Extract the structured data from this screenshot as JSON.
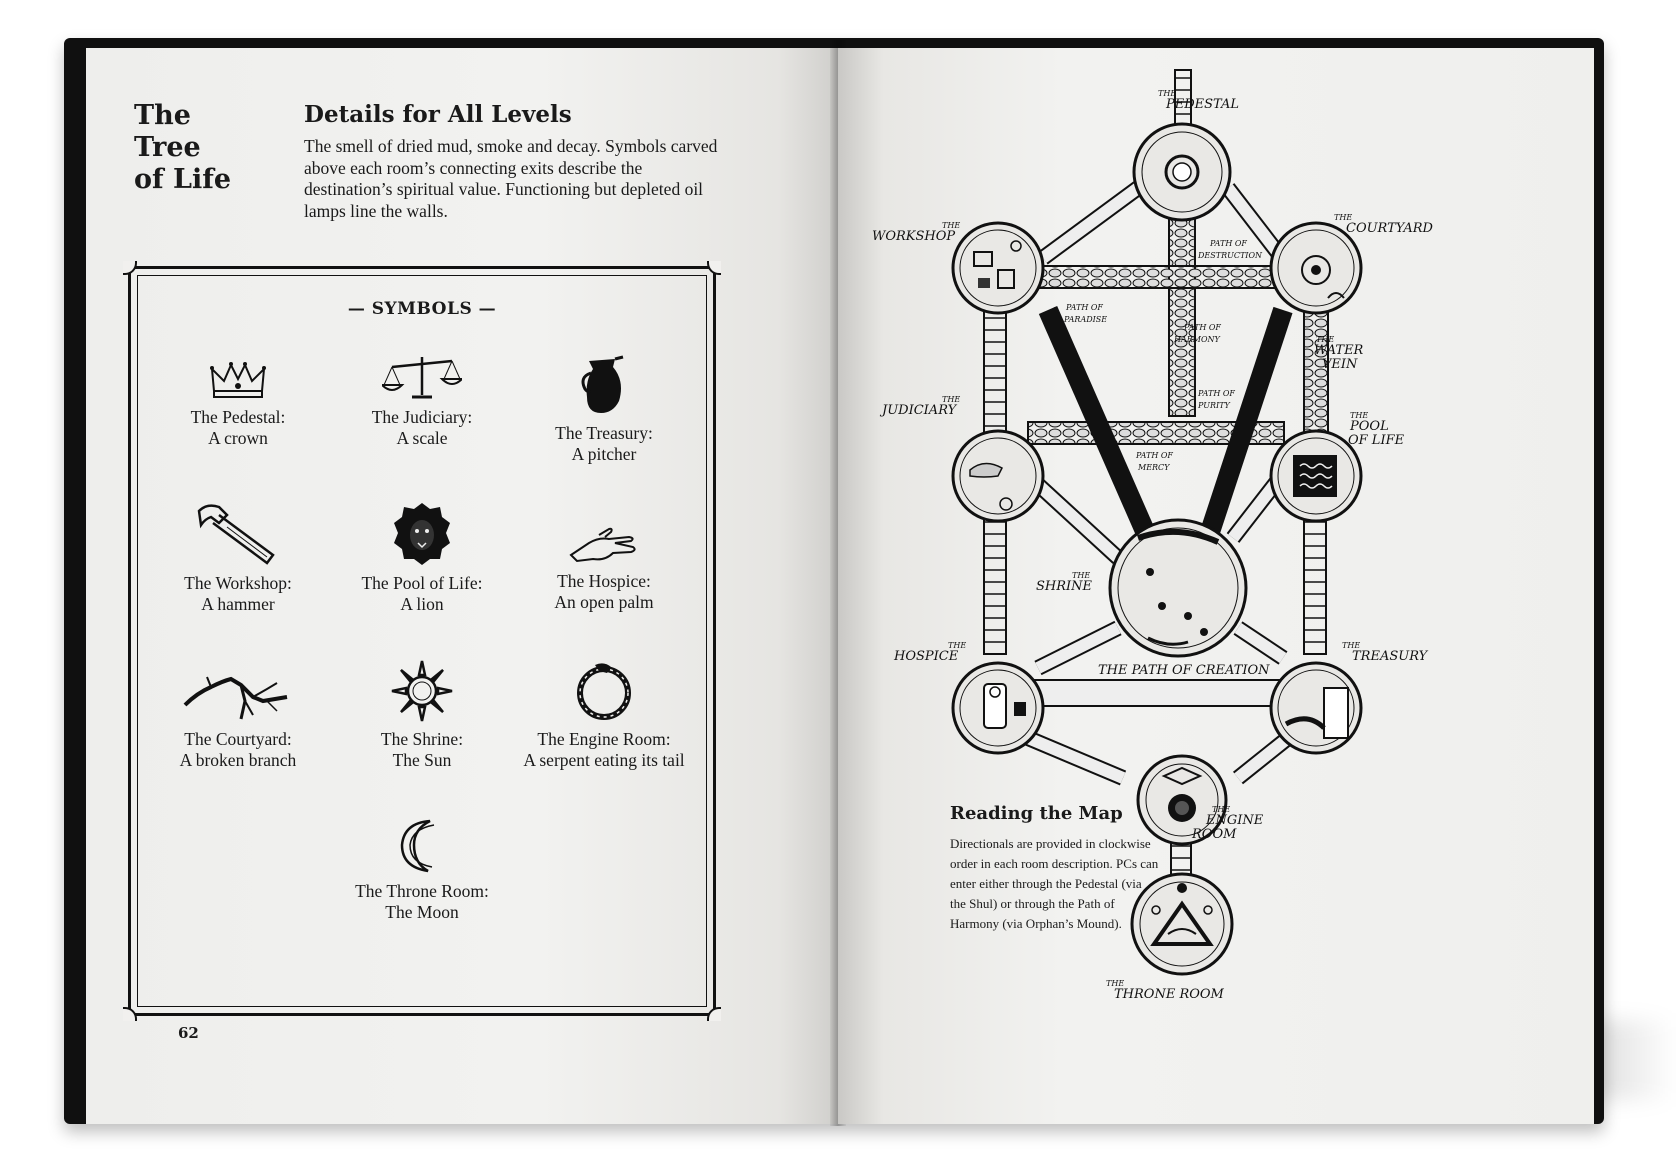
{
  "left_page": {
    "chapter_title_lines": [
      "The",
      "Tree",
      "of Life"
    ],
    "details_heading": "Details for All Levels",
    "details_body": "The smell of dried mud, smoke and decay. Symbols carved above each room’s connecting exits describe the destination’s spiritual value. Functioning but depleted oil lamps line the walls.",
    "symbols_heading": "— SYMBOLS —",
    "symbols": [
      {
        "l1": "The Pedestal:",
        "l2": "A crown",
        "icon": "crown-icon"
      },
      {
        "l1": "The Judiciary:",
        "l2": "A scale",
        "icon": "scale-icon"
      },
      {
        "l1": "The Treasury:",
        "l2": "A pitcher",
        "icon": "pitcher-icon"
      },
      {
        "l1": "The Workshop:",
        "l2": "A hammer",
        "icon": "hammer-icon"
      },
      {
        "l1": "The Pool of Life:",
        "l2": "A lion",
        "icon": "lion-icon"
      },
      {
        "l1": "The Hospice:",
        "l2": "An open palm",
        "icon": "open-palm-icon"
      },
      {
        "l1": "The Courtyard:",
        "l2": "A broken branch",
        "icon": "broken-branch-icon"
      },
      {
        "l1": "The Shrine:",
        "l2": "The Sun",
        "icon": "sun-icon"
      },
      {
        "l1": "The Engine Room:",
        "l2": "A serpent eating its tail",
        "icon": "ouroboros-icon"
      },
      {
        "l1": "The Throne Room:",
        "l2": "The Moon",
        "icon": "moon-icon"
      }
    ],
    "page_number": "62"
  },
  "right_page": {
    "map_labels": {
      "the": "THE",
      "pedestal": "PEDESTAL",
      "workshop": "WORKSHOP",
      "courtyard": "COURTYARD",
      "path_of": "PATH OF",
      "destruction": "DESTRUCTION",
      "paradise": "PARADISE",
      "harmony": "HARMONY",
      "water": "WATER",
      "vein": "VEIN",
      "judiciary": "JUDICIARY",
      "purity": "PURITY",
      "pool": "POOL",
      "of_life": "OF LIFE",
      "mercy": "MERCY",
      "shrine": "SHRINE",
      "hospice": "HOSPICE",
      "path_of_creation": "THE PATH OF CREATION",
      "treasury": "TREASURY",
      "engine": "ENGINE",
      "room": "ROOM",
      "throne_room": "THRONE ROOM"
    },
    "reading_heading": "Reading the Map",
    "reading_body": "Directionals are provided in clockwise order in each room description. PCs can enter either through the Pedestal (via the Shul) or through the Path of Harmony (via Orphan’s Mound)."
  }
}
